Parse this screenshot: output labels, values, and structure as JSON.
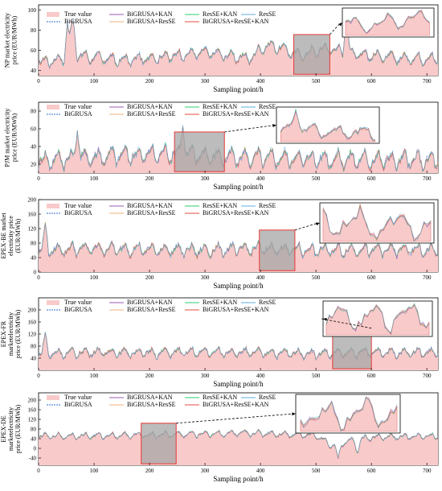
{
  "legend": {
    "entries": [
      {
        "label": "True value",
        "color": "#f4a6a6",
        "kind": "area"
      },
      {
        "label": "BiGRUSA",
        "color": "#2f6fd6",
        "kind": "dash"
      },
      {
        "label": "BiGRUSA+KAN",
        "color": "#9b59b6",
        "kind": "line"
      },
      {
        "label": "BiGRUSA+ResSE",
        "color": "#f0b27a",
        "kind": "line"
      },
      {
        "label": "ResSE+KAN",
        "color": "#2ecc71",
        "kind": "line"
      },
      {
        "label": "BiGRUSA+ResSE+KAN",
        "color": "#e74c3c",
        "kind": "line"
      },
      {
        "label": "ResSE",
        "color": "#5dade2",
        "kind": "line"
      }
    ]
  },
  "colors": {
    "true_fill": "#f9caca",
    "true_line": "#e57373",
    "zoom_fill": "#a6a6a6",
    "zoom_border": "#e53935",
    "axis": "#000000"
  },
  "chart_data": [
    {
      "type": "line",
      "ylabel": "NP market electricity price (EUR/MWh)",
      "xlabel": "Sampling point/h",
      "xlim": [
        0,
        720
      ],
      "ylim": [
        35,
        105
      ],
      "xticks": [
        0,
        100,
        200,
        300,
        400,
        500,
        600,
        700
      ],
      "yticks": [
        40,
        60,
        80,
        100
      ],
      "zoom_range": [
        460,
        525
      ],
      "base": 48,
      "amplitude": 8,
      "trend": [
        [
          0,
          48
        ],
        [
          50,
          52
        ],
        [
          60,
          80
        ],
        [
          70,
          55
        ],
        [
          150,
          50
        ],
        [
          250,
          55
        ],
        [
          300,
          58
        ],
        [
          380,
          52
        ],
        [
          410,
          65
        ],
        [
          440,
          62
        ],
        [
          470,
          55
        ],
        [
          520,
          62
        ],
        [
          560,
          58
        ],
        [
          600,
          55
        ],
        [
          650,
          52
        ],
        [
          720,
          52
        ]
      ],
      "spikes": [
        [
          52,
          88
        ],
        [
          62,
          90
        ],
        [
          555,
          100
        ]
      ]
    },
    {
      "type": "line",
      "ylabel": "PJM market electricity price (EUR/MWh)",
      "xlabel": "Sampling point/h",
      "xlim": [
        0,
        720
      ],
      "ylim": [
        10,
        90
      ],
      "xticks": [
        0,
        100,
        200,
        300,
        400,
        500,
        600,
        700
      ],
      "yticks": [
        20,
        40,
        60,
        80
      ],
      "zoom_range": [
        245,
        335
      ],
      "base": 25,
      "amplitude": 14,
      "trend": [
        [
          0,
          24
        ],
        [
          100,
          28
        ],
        [
          150,
          30
        ],
        [
          250,
          32
        ],
        [
          340,
          28
        ],
        [
          400,
          27
        ],
        [
          500,
          26
        ],
        [
          600,
          25
        ],
        [
          720,
          24
        ]
      ],
      "spikes": [
        [
          70,
          58
        ],
        [
          260,
          62
        ]
      ]
    },
    {
      "type": "line",
      "ylabel": "EPEX-BE market electricity price (EUR/MWh)",
      "xlabel": "Sampling point/h",
      "xlim": [
        0,
        720
      ],
      "ylim": [
        0,
        200
      ],
      "xticks": [
        0,
        100,
        200,
        300,
        400,
        500,
        600,
        700
      ],
      "yticks": [
        0,
        40,
        80,
        120,
        160,
        200
      ],
      "zoom_range": [
        398,
        462
      ],
      "base": 60,
      "amplitude": 25,
      "trend": [
        [
          0,
          60
        ],
        [
          100,
          65
        ],
        [
          200,
          62
        ],
        [
          300,
          60
        ],
        [
          400,
          65
        ],
        [
          500,
          60
        ],
        [
          600,
          62
        ],
        [
          720,
          60
        ]
      ],
      "spikes": [
        [
          12,
          135
        ]
      ]
    },
    {
      "type": "line",
      "ylabel": "EPEX-FR marketelectricity price (EUR/MWh)",
      "xlabel": "Sampling point/h",
      "xlim": [
        0,
        720
      ],
      "ylim": [
        0,
        240
      ],
      "xticks": [
        0,
        100,
        200,
        300,
        400,
        500,
        600,
        700
      ],
      "yticks": [
        40,
        80,
        120,
        160,
        200
      ],
      "zoom_range": [
        530,
        600
      ],
      "base": 55,
      "amplitude": 22,
      "trend": [
        [
          0,
          55
        ],
        [
          100,
          60
        ],
        [
          200,
          58
        ],
        [
          300,
          60
        ],
        [
          400,
          58
        ],
        [
          500,
          55
        ],
        [
          600,
          60
        ],
        [
          720,
          58
        ]
      ],
      "spikes": [
        [
          12,
          125
        ]
      ]
    },
    {
      "type": "line",
      "ylabel": "EPEX-DE marketelectricity price (EUR/MWh)",
      "xlabel": "Sampling point/h",
      "xlim": [
        0,
        720
      ],
      "ylim": [
        -70,
        230
      ],
      "xticks": [
        0,
        100,
        200,
        300,
        400,
        500,
        600,
        700
      ],
      "yticks": [
        -40,
        0,
        40,
        80,
        120,
        160,
        200
      ],
      "zoom_range": [
        185,
        248
      ],
      "base": 55,
      "amplitude": 18,
      "trend": [
        [
          0,
          50
        ],
        [
          100,
          52
        ],
        [
          200,
          55
        ],
        [
          300,
          60
        ],
        [
          400,
          62
        ],
        [
          500,
          55
        ],
        [
          530,
          10
        ],
        [
          560,
          30
        ],
        [
          600,
          45
        ],
        [
          720,
          50
        ]
      ],
      "spikes": [
        [
          540,
          -40
        ],
        [
          575,
          -25
        ]
      ]
    }
  ]
}
